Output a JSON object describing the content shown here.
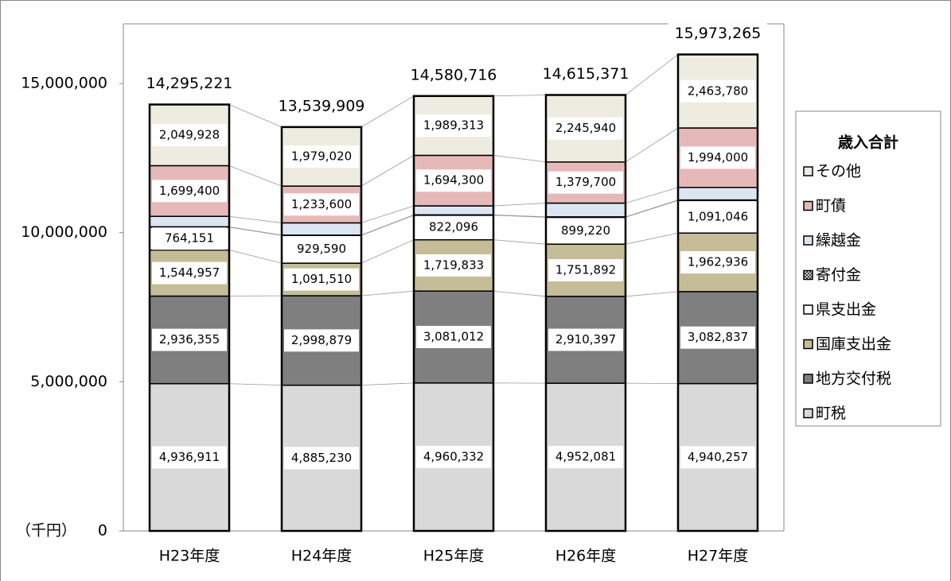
{
  "chart_data": {
    "type": "stacked_bar",
    "y_label": "（千円）",
    "categories": [
      "H23年度",
      "H24年度",
      "H25年度",
      "H26年度",
      "H27年度"
    ],
    "series": [
      {
        "name": "町税",
        "color": "#d9d9d9",
        "values": [
          4936911,
          4885230,
          4960332,
          4952081,
          4940257
        ],
        "value_labels": [
          "4,936,911",
          "4,885,230",
          "4,960,332",
          "4,952,081",
          "4,940,257"
        ]
      },
      {
        "name": "地方交付税",
        "color": "#7f7f7f",
        "values": [
          2936355,
          2998879,
          3081012,
          2910397,
          3082837
        ],
        "value_labels": [
          "2,936,355",
          "2,998,879",
          "3,081,012",
          "2,910,397",
          "3,082,837"
        ]
      },
      {
        "name": "国庫支出金",
        "color": "#c4bd97",
        "values": [
          1544957,
          1091510,
          1719833,
          1751892,
          1962936
        ],
        "value_labels": [
          "1,544,957",
          "1,091,510",
          "1,719,833",
          "1,751,892",
          "1,962,936"
        ]
      },
      {
        "name": "県支出金",
        "color": "#ffffff",
        "values": [
          764151,
          929590,
          822096,
          899220,
          1091046
        ],
        "value_labels": [
          "764,151",
          "929,590",
          "822,096",
          "899,220",
          "1,091,046"
        ]
      },
      {
        "name": "寄付金",
        "color": "#595959",
        "values": [
          13519,
          12080,
          13830,
          16141,
          18409
        ]
      },
      {
        "name": "繰越金",
        "color": "#dce6f2",
        "values": [
          350000,
          410000,
          300000,
          460000,
          420000
        ]
      },
      {
        "name": "町債",
        "color": "#e6b9b8",
        "values": [
          1699400,
          1233600,
          1694300,
          1379700,
          1994000
        ],
        "value_labels": [
          "1,699,400",
          "1,233,600",
          "1,694,300",
          "1,379,700",
          "1,994,000"
        ]
      },
      {
        "name": "その他",
        "color": "#eeece1",
        "values": [
          2049928,
          1979020,
          1989313,
          2245940,
          2463780
        ],
        "value_labels": [
          "2,049,928",
          "1,979,020",
          "1,989,313",
          "2,245,940",
          "2,463,780"
        ]
      }
    ],
    "totals": {
      "name": "歳入合計",
      "values": [
        14295221,
        13539909,
        14580716,
        14615371,
        15973265
      ],
      "value_labels": [
        "14,295,221",
        "13,539,909",
        "14,580,716",
        "14,615,371",
        "15,973,265"
      ]
    },
    "ylim": [
      0,
      17000000
    ],
    "yticks": [
      0,
      {
        "value": 5000000,
        "label": "5,000,000"
      },
      {
        "value": 10000000,
        "label": "10,000,000"
      },
      {
        "value": 15000000,
        "label": "15,000,000"
      }
    ],
    "legend": "right"
  }
}
